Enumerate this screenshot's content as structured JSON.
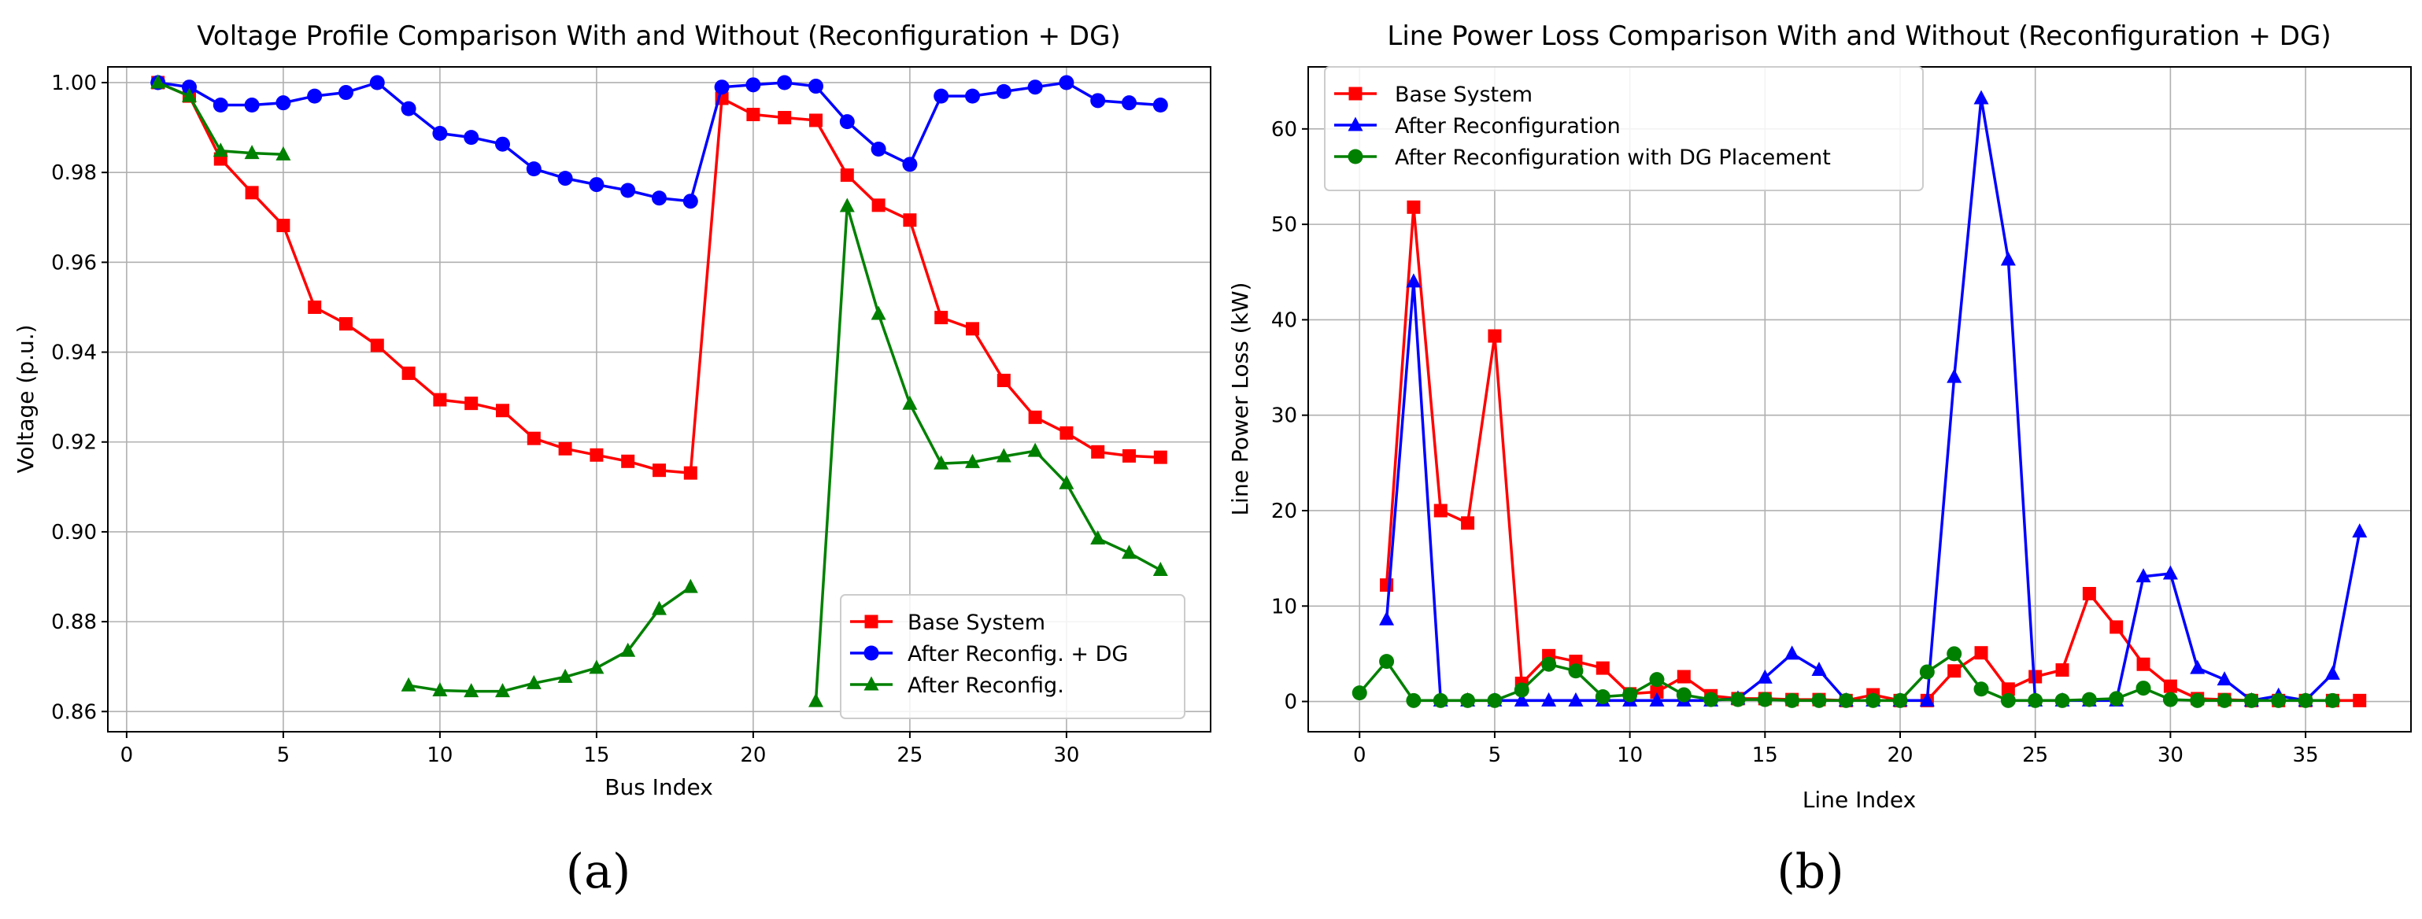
{
  "chart_data": [
    {
      "type": "line",
      "panel_label": "(a)",
      "title": "Voltage Profile Comparison With and Without (Reconfiguration + DG)",
      "xlabel": "Bus Index",
      "ylabel": "Voltage (p.u.)",
      "xlim": [
        -0.6,
        34.6
      ],
      "ylim": [
        0.8555,
        1.0035
      ],
      "xticks": [
        0,
        5,
        10,
        15,
        20,
        25,
        30
      ],
      "yticks": [
        0.86,
        0.88,
        0.9,
        0.92,
        0.94,
        0.96,
        0.98,
        1.0
      ],
      "ytick_labels": [
        "0.86",
        "0.88",
        "0.90",
        "0.92",
        "0.94",
        "0.96",
        "0.98",
        "1.00"
      ],
      "grid": true,
      "legend_position": "lower-right",
      "series": [
        {
          "name": "Base System",
          "color": "#ff0000",
          "marker": "square",
          "x": [
            1,
            2,
            3,
            4,
            5,
            6,
            7,
            8,
            9,
            10,
            11,
            12,
            13,
            14,
            15,
            16,
            17,
            18,
            19,
            20,
            21,
            22,
            23,
            24,
            25,
            26,
            27,
            28,
            29,
            30,
            31,
            32,
            33
          ],
          "y": [
            1.0,
            0.997,
            0.983,
            0.9755,
            0.9682,
            0.95,
            0.9463,
            0.9415,
            0.9353,
            0.9294,
            0.9286,
            0.927,
            0.9208,
            0.9185,
            0.9171,
            0.9157,
            0.9137,
            0.9131,
            0.9965,
            0.9929,
            0.9922,
            0.9916,
            0.9794,
            0.9727,
            0.9694,
            0.9477,
            0.9452,
            0.9337,
            0.9255,
            0.922,
            0.9178,
            0.9169,
            0.9166
          ]
        },
        {
          "name": "After Reconfig. + DG",
          "color": "#0000ff",
          "marker": "circle",
          "x": [
            1,
            2,
            3,
            4,
            5,
            6,
            7,
            8,
            9,
            10,
            11,
            12,
            13,
            14,
            15,
            16,
            17,
            18,
            19,
            20,
            21,
            22,
            23,
            24,
            25,
            26,
            27,
            28,
            29,
            30,
            31,
            32,
            33
          ],
          "y": [
            1.0,
            0.999,
            0.995,
            0.995,
            0.9955,
            0.997,
            0.9978,
            1.0,
            0.9942,
            0.9887,
            0.9878,
            0.9863,
            0.9808,
            0.9787,
            0.9773,
            0.976,
            0.9743,
            0.9736,
            0.999,
            0.9995,
            1.0,
            0.9992,
            0.9913,
            0.9852,
            0.9818,
            0.997,
            0.997,
            0.998,
            0.999,
            1.0,
            0.996,
            0.9955,
            0.995
          ]
        },
        {
          "name": "After Reconfig.",
          "color": "#008000",
          "marker": "triangle",
          "segments": [
            {
              "x": [
                1,
                2,
                3,
                4,
                5
              ],
              "y": [
                1.0,
                0.997,
                0.9848,
                0.9843,
                0.984
              ]
            },
            {
              "x": [
                9,
                10,
                11,
                12,
                13,
                14,
                15,
                16,
                17,
                18
              ],
              "y": [
                0.8658,
                0.8647,
                0.8645,
                0.8645,
                0.8663,
                0.8677,
                0.8697,
                0.8735,
                0.8828,
                0.8877
              ]
            },
            {
              "x": [
                22,
                23,
                24,
                25,
                26,
                27,
                28,
                29,
                30,
                31,
                32,
                33
              ],
              "y": [
                0.8623,
                0.9725,
                0.9485,
                0.9285,
                0.9152,
                0.9155,
                0.9168,
                0.918,
                0.9108,
                0.8985,
                0.8953,
                0.8915
              ]
            }
          ]
        }
      ]
    },
    {
      "type": "line",
      "panel_label": "(b)",
      "title": "Line Power Loss Comparison With and Without (Reconfiguration + DG)",
      "xlabel": "Line Index",
      "ylabel": "Line Power Loss (kW)",
      "xlim": [
        -1.9,
        38.9
      ],
      "ylim": [
        -3.17,
        66.5
      ],
      "xticks": [
        0,
        5,
        10,
        15,
        20,
        25,
        30,
        35
      ],
      "yticks": [
        0,
        10,
        20,
        30,
        40,
        50,
        60
      ],
      "ytick_labels": [
        "0",
        "10",
        "20",
        "30",
        "40",
        "50",
        "60"
      ],
      "grid": true,
      "legend_position": "top-left",
      "series": [
        {
          "name": "Base System",
          "color": "#ff0000",
          "marker": "square",
          "x": [
            1,
            2,
            3,
            4,
            5,
            6,
            7,
            8,
            9,
            10,
            11,
            12,
            13,
            14,
            15,
            16,
            17,
            18,
            19,
            20,
            21,
            22,
            23,
            24,
            25,
            26,
            27,
            28,
            29,
            30,
            31,
            32,
            33,
            34,
            35,
            36,
            37
          ],
          "y": [
            12.2,
            51.8,
            20.0,
            18.7,
            38.3,
            1.9,
            4.8,
            4.2,
            3.5,
            0.8,
            1.0,
            2.6,
            0.6,
            0.3,
            0.3,
            0.2,
            0.2,
            0.1,
            0.7,
            0.1,
            0.1,
            3.2,
            5.1,
            1.3,
            2.6,
            3.3,
            11.3,
            7.8,
            3.9,
            1.6,
            0.3,
            0.2,
            0.1,
            0.1,
            0.1,
            0.1,
            0.1
          ]
        },
        {
          "name": "After Reconfiguration",
          "color": "#0000ff",
          "marker": "triangle",
          "x": [
            1,
            2,
            3,
            4,
            5,
            6,
            7,
            8,
            9,
            10,
            11,
            12,
            13,
            14,
            15,
            16,
            17,
            18,
            19,
            20,
            21,
            22,
            23,
            24,
            25,
            26,
            27,
            28,
            29,
            30,
            31,
            32,
            33,
            34,
            35,
            36,
            37
          ],
          "y": [
            8.6,
            44.0,
            0.1,
            0.1,
            0.1,
            0.1,
            0.1,
            0.1,
            0.1,
            0.1,
            0.1,
            0.1,
            0.1,
            0.3,
            2.5,
            5.0,
            3.3,
            0.1,
            0.1,
            0.1,
            0.1,
            34.0,
            63.2,
            46.3,
            0.1,
            0.1,
            0.1,
            0.1,
            13.1,
            13.4,
            3.5,
            2.3,
            0.1,
            0.6,
            0.1,
            2.9,
            17.8
          ]
        },
        {
          "name": "After Reconfiguration with DG Placement",
          "color": "#008000",
          "marker": "circle",
          "x": [
            0,
            1,
            2,
            3,
            4,
            5,
            6,
            7,
            8,
            9,
            10,
            11,
            12,
            13,
            14,
            15,
            16,
            17,
            18,
            19,
            20,
            21,
            22,
            23,
            24,
            25,
            26,
            27,
            28,
            29,
            30,
            31,
            32,
            33,
            34,
            35,
            36
          ],
          "y": [
            0.9,
            4.2,
            0.1,
            0.1,
            0.1,
            0.1,
            1.2,
            3.9,
            3.2,
            0.5,
            0.7,
            2.3,
            0.7,
            0.2,
            0.2,
            0.2,
            0.1,
            0.1,
            0.1,
            0.1,
            0.1,
            3.1,
            5.0,
            1.3,
            0.1,
            0.1,
            0.1,
            0.2,
            0.3,
            1.4,
            0.2,
            0.1,
            0.1,
            0.1,
            0.1,
            0.1,
            0.1
          ]
        }
      ]
    }
  ]
}
